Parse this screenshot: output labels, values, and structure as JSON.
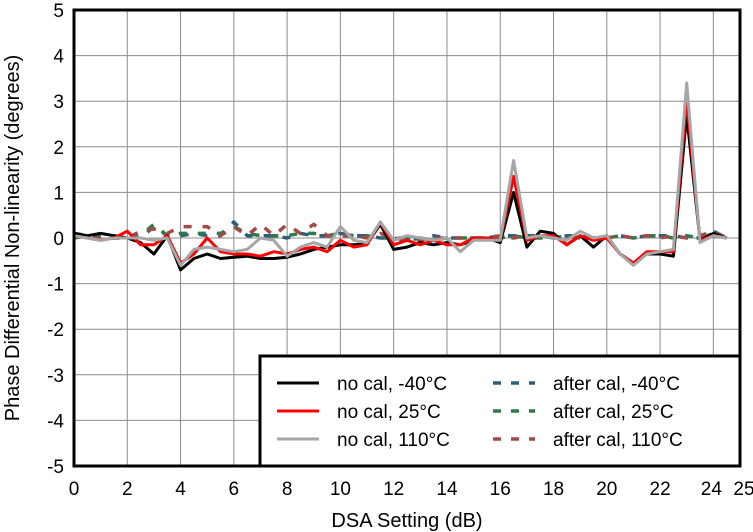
{
  "chart_data": {
    "type": "line",
    "title": "",
    "xlabel": "DSA Setting (dB)",
    "ylabel": "Phase Differential Non-linearity (degrees)",
    "xlim": [
      0,
      25
    ],
    "ylim": [
      -5,
      5
    ],
    "x_ticks": [
      "0",
      "2",
      "4",
      "6",
      "8",
      "10",
      "12",
      "14",
      "16",
      "18",
      "20",
      "22",
      "24",
      "25"
    ],
    "y_ticks": [
      "-5",
      "-4",
      "-3",
      "-2",
      "-1",
      "0",
      "1",
      "2",
      "3",
      "4",
      "5"
    ],
    "grid": true,
    "legend_position": "bottom-right",
    "x": [
      0,
      0.5,
      1,
      1.5,
      2,
      2.5,
      3,
      3.5,
      4,
      4.5,
      5,
      5.5,
      6,
      6.5,
      7,
      7.5,
      8,
      8.5,
      9,
      9.5,
      10,
      10.5,
      11,
      11.5,
      12,
      12.5,
      13,
      13.5,
      14,
      14.5,
      15,
      15.5,
      16,
      16.5,
      17,
      17.5,
      18,
      18.5,
      19,
      19.5,
      20,
      20.5,
      21,
      21.5,
      22,
      22.5,
      23,
      23.5,
      24,
      24.5
    ],
    "series": [
      {
        "name": "no cal, -40°C",
        "color": "#000000",
        "style": "solid",
        "values": [
          0.1,
          0.05,
          0.1,
          0.05,
          0.0,
          -0.1,
          -0.35,
          0.05,
          -0.7,
          -0.45,
          -0.35,
          -0.45,
          -0.42,
          -0.4,
          -0.45,
          -0.45,
          -0.42,
          -0.35,
          -0.25,
          -0.2,
          -0.15,
          -0.15,
          -0.12,
          0.3,
          -0.25,
          -0.2,
          -0.1,
          -0.15,
          -0.1,
          -0.15,
          -0.05,
          0.0,
          -0.1,
          1.0,
          -0.2,
          0.15,
          0.1,
          -0.15,
          0.05,
          -0.2,
          0.05,
          -0.35,
          -0.55,
          -0.35,
          -0.35,
          -0.4,
          2.7,
          -0.05,
          0.1,
          0.0
        ]
      },
      {
        "name": "no cal, 25°C",
        "color": "#ff0000",
        "style": "solid",
        "values": [
          0.05,
          0.0,
          -0.05,
          0.0,
          0.15,
          -0.15,
          -0.15,
          0.05,
          -0.55,
          -0.35,
          0.0,
          -0.3,
          -0.35,
          -0.35,
          -0.4,
          -0.3,
          -0.35,
          -0.25,
          -0.2,
          -0.3,
          -0.05,
          -0.2,
          -0.15,
          0.35,
          -0.15,
          -0.05,
          -0.15,
          -0.05,
          -0.15,
          -0.15,
          0.0,
          0.0,
          -0.05,
          1.35,
          -0.05,
          0.05,
          0.05,
          -0.15,
          0.05,
          -0.05,
          0.0,
          -0.35,
          -0.55,
          -0.3,
          -0.3,
          -0.3,
          3.05,
          -0.05,
          0.05,
          0.0
        ]
      },
      {
        "name": "no cal, 110°C",
        "color": "#a6a6a6",
        "style": "solid",
        "values": [
          0.05,
          0.0,
          -0.05,
          0.0,
          0.0,
          0.0,
          -0.05,
          0.0,
          -0.6,
          -0.25,
          -0.2,
          -0.25,
          -0.3,
          -0.25,
          0.0,
          -0.05,
          -0.4,
          -0.2,
          -0.1,
          -0.2,
          0.25,
          -0.05,
          -0.1,
          0.35,
          -0.05,
          0.05,
          0.0,
          -0.05,
          0.0,
          -0.3,
          -0.05,
          -0.05,
          -0.05,
          1.7,
          0.0,
          0.05,
          0.0,
          -0.05,
          0.15,
          0.0,
          0.05,
          -0.35,
          -0.6,
          -0.35,
          -0.3,
          -0.25,
          3.4,
          -0.1,
          0.05,
          0.0
        ]
      },
      {
        "name": "after cal, -40°C",
        "color": "#2e5f7a",
        "style": "dashed",
        "values": [
          0.1,
          0.05,
          0.05,
          0.05,
          0.0,
          0.0,
          0.25,
          0.05,
          0.05,
          0.1,
          0.05,
          0.05,
          0.35,
          0.05,
          0.05,
          0.05,
          0.0,
          0.1,
          0.05,
          0.05,
          0.1,
          0.05,
          0.05,
          0.0,
          0.0,
          -0.05,
          0.0,
          0.05,
          0.0,
          0.0,
          0.0,
          0.0,
          0.05,
          0.05,
          0.05,
          0.05,
          0.0,
          0.05,
          0.05,
          0.0,
          0.0,
          0.05,
          0.0,
          0.05,
          0.05,
          0.05,
          0.0,
          0.0,
          0.15,
          0.0
        ]
      },
      {
        "name": "after cal, 25°C",
        "color": "#2f7a4a",
        "style": "dashed",
        "values": [
          0.0,
          0.05,
          0.05,
          0.0,
          0.0,
          0.05,
          0.3,
          0.05,
          0.1,
          0.1,
          0.1,
          0.1,
          0.25,
          0.1,
          0.05,
          0.05,
          0.05,
          0.1,
          0.1,
          0.05,
          0.1,
          0.05,
          0.05,
          0.0,
          0.0,
          0.0,
          0.0,
          -0.05,
          0.0,
          0.0,
          0.0,
          0.0,
          0.0,
          0.05,
          0.0,
          0.0,
          0.0,
          0.05,
          0.0,
          0.0,
          0.0,
          0.05,
          0.0,
          0.05,
          0.05,
          0.0,
          0.05,
          0.0,
          0.1,
          0.0
        ]
      },
      {
        "name": "after cal, 110°C",
        "color": "#a24a45",
        "style": "dashed",
        "values": [
          0.05,
          0.0,
          0.0,
          0.0,
          0.0,
          0.15,
          0.2,
          0.1,
          0.25,
          0.25,
          0.25,
          0.05,
          0.25,
          0.05,
          0.3,
          0.05,
          0.3,
          0.1,
          0.3,
          0.05,
          0.05,
          0.05,
          0.0,
          0.1,
          0.0,
          0.0,
          -0.05,
          0.0,
          0.0,
          0.0,
          0.0,
          0.0,
          0.05,
          0.0,
          0.05,
          0.0,
          0.05,
          0.0,
          0.05,
          0.0,
          0.0,
          0.05,
          0.0,
          0.05,
          0.0,
          0.05,
          0.0,
          0.05,
          0.15,
          0.0
        ]
      }
    ]
  }
}
